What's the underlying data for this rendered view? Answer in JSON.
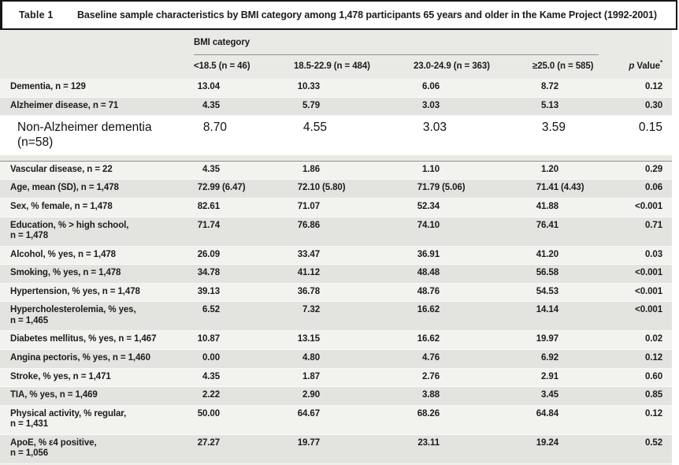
{
  "title_bar": {
    "label": "Table 1",
    "title": "Baseline sample characteristics by BMI category among 1,478 participants 65 years and older in the Kame Project (1992-2001)"
  },
  "table": {
    "group_header": "BMI category",
    "columns": [
      "<18.5 (n = 46)",
      "18.5-22.9 (n = 484)",
      "23.0-24.9 (n = 363)",
      "≥25.0 (n = 585)"
    ],
    "p_header": {
      "p": "p",
      "text": " Value",
      "sup": "*"
    },
    "rows": [
      {
        "label": "Dementia, n = 129",
        "values": [
          "13.04",
          "10.33",
          "6.06",
          "8.72"
        ],
        "p": "0.12",
        "shade": "light"
      },
      {
        "label": "Alzheimer disease, n = 71",
        "values": [
          "4.35",
          "5.79",
          "3.03",
          "5.13"
        ],
        "p": "0.30",
        "shade": "dark"
      },
      {
        "label": "Non-Alzheimer dementia (n=58)",
        "values": [
          "8.70",
          "4.55",
          "3.03",
          "3.59"
        ],
        "p": "0.15",
        "shade": "white",
        "inserted": true
      },
      {
        "label": "Vascular disease, n = 22",
        "values": [
          "4.35",
          "1.86",
          "1.10",
          "1.20"
        ],
        "p": "0.29",
        "shade": "light",
        "section_gap": true
      },
      {
        "label": "Age, mean (SD), n = 1,478",
        "values": [
          "72.99 (6.47)",
          "72.10 (5.80)",
          "71.79 (5.06)",
          "71.41 (4.43)"
        ],
        "p": "0.06",
        "shade": "dark"
      },
      {
        "label": "Sex, % female, n = 1,478",
        "values": [
          "82.61",
          "71.07",
          "52.34",
          "41.88"
        ],
        "p": "<0.001",
        "shade": "light"
      },
      {
        "label": "Education, % > high school,\nn = 1,478",
        "values": [
          "71.74",
          "76.86",
          "74.10",
          "76.41"
        ],
        "p": "0.71",
        "shade": "dark"
      },
      {
        "label": "Alcohol, % yes, n = 1,478",
        "values": [
          "26.09",
          "33.47",
          "36.91",
          "41.20"
        ],
        "p": "0.03",
        "shade": "light"
      },
      {
        "label": "Smoking, % yes, n = 1,478",
        "values": [
          "34.78",
          "41.12",
          "48.48",
          "56.58"
        ],
        "p": "<0.001",
        "shade": "dark"
      },
      {
        "label": "Hypertension, % yes, n = 1,478",
        "values": [
          "39.13",
          "36.78",
          "48.76",
          "54.53"
        ],
        "p": "<0.001",
        "shade": "light"
      },
      {
        "label": "Hypercholesterolemia, % yes,\nn = 1,465",
        "values": [
          "6.52",
          "7.32",
          "16.62",
          "14.14"
        ],
        "p": "<0.001",
        "shade": "dark"
      },
      {
        "label": "Diabetes mellitus, % yes, n = 1,467",
        "values": [
          "10.87",
          "13.15",
          "16.62",
          "19.97"
        ],
        "p": "0.02",
        "shade": "light"
      },
      {
        "label": "Angina pectoris, % yes, n = 1,460",
        "values": [
          "0.00",
          "4.80",
          "4.76",
          "6.92"
        ],
        "p": "0.12",
        "shade": "dark"
      },
      {
        "label": "Stroke, % yes, n = 1,471",
        "values": [
          "4.35",
          "1.87",
          "2.76",
          "2.91"
        ],
        "p": "0.60",
        "shade": "light"
      },
      {
        "label": "TIA, % yes, n = 1,469",
        "values": [
          "2.22",
          "2.90",
          "3.88",
          "3.45"
        ],
        "p": "0.85",
        "shade": "dark"
      },
      {
        "label": "Physical activity, % regular,\nn = 1,431",
        "values": [
          "50.00",
          "64.67",
          "68.26",
          "64.84"
        ],
        "p": "0.12",
        "shade": "light"
      },
      {
        "label": "ApoE, % ε4 positive,\nn = 1,056",
        "values": [
          "27.27",
          "19.77",
          "23.11",
          "19.24"
        ],
        "p": "0.52",
        "shade": "dark"
      }
    ]
  },
  "colors": {
    "stripe_light": "#f2f2ef",
    "stripe_dark": "#e3e3e0",
    "header_bg": "#e9e9e6",
    "inserted_row_bg": "#ffffff",
    "frame_border": "#151515",
    "text": "#1c1c1c",
    "rule": "#8f8f8c"
  }
}
